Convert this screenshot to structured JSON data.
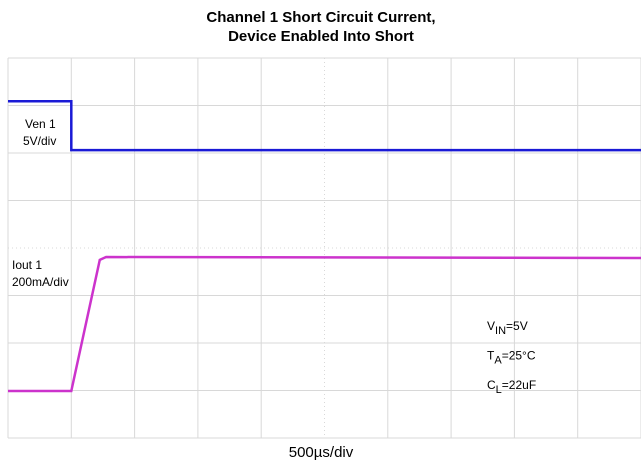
{
  "chart_data": {
    "type": "line",
    "title": [
      "Channel 1 Short Circuit Current,",
      "Device Enabled Into Short"
    ],
    "x_label": "500µs/div",
    "xlim": [
      0,
      10
    ],
    "xticks": [
      0,
      1,
      2,
      3,
      4,
      5,
      6,
      7,
      8,
      9,
      10
    ],
    "ylim": [
      0,
      8
    ],
    "yticks": [
      0,
      1,
      2,
      3,
      4,
      5,
      6,
      7,
      8
    ],
    "grid": true,
    "series": [
      {
        "name": "Ven 1",
        "scale": "5V/div",
        "color": "#1a1ad6",
        "x": [
          0,
          1,
          1,
          10
        ],
        "values": [
          7.09,
          7.09,
          6.06,
          6.06
        ]
      },
      {
        "name": "Iout 1",
        "scale": "200mA/div",
        "color": "#cc33cc",
        "x": [
          0,
          1,
          1.45,
          1.55,
          10
        ],
        "values": [
          0.99,
          0.99,
          3.75,
          3.81,
          3.79
        ]
      }
    ],
    "annotations": [
      {
        "main": "V",
        "sub": "IN",
        "rest": "=5V"
      },
      {
        "main": "T",
        "sub": "A",
        "rest": "=25°C"
      },
      {
        "main": "C",
        "sub": "L",
        "rest": "=22uF"
      }
    ]
  }
}
